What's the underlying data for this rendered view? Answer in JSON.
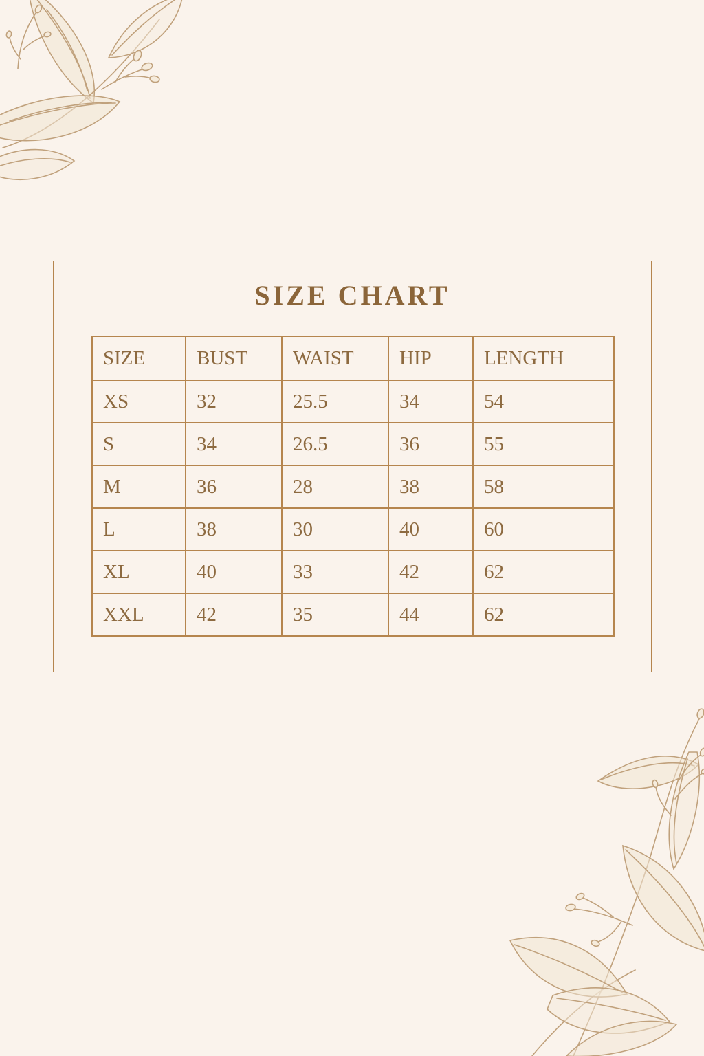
{
  "page": {
    "background_color": "#faf3ec",
    "frame_border_color": "#b5854e",
    "table_border_color": "#b5854e",
    "title_color": "#8b6539",
    "cell_text_color": "#8d6a40",
    "decoration_stroke_color": "#c0a17c",
    "decoration_fill_color": "#f1e5d4",
    "decorations": {
      "top_left": "floral-line-art-branch",
      "bottom_right": "floral-line-art-branch"
    }
  },
  "chart_data": {
    "type": "table",
    "title": "SIZE CHART",
    "columns": [
      "SIZE",
      "BUST",
      "WAIST",
      "HIP",
      "LENGTH"
    ],
    "rows": [
      [
        "XS",
        "32",
        "25.5",
        "34",
        "54"
      ],
      [
        "S",
        "34",
        "26.5",
        "36",
        "55"
      ],
      [
        "M",
        "36",
        "28",
        "38",
        "58"
      ],
      [
        "L",
        "38",
        "30",
        "40",
        "60"
      ],
      [
        "XL",
        "40",
        "33",
        "42",
        "62"
      ],
      [
        "XXL",
        "42",
        "35",
        "44",
        "62"
      ]
    ]
  }
}
